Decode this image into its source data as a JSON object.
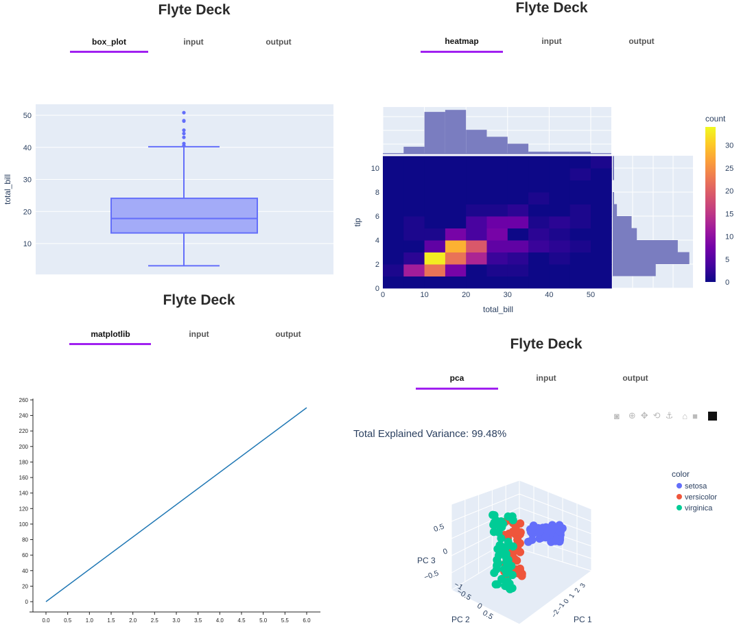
{
  "panels": [
    {
      "title": "Flyte Deck",
      "tabs": [
        "box_plot",
        "input",
        "output"
      ],
      "active": 0
    },
    {
      "title": "Flyte Deck",
      "tabs": [
        "heatmap",
        "input",
        "output"
      ],
      "active": 0
    },
    {
      "title": "Flyte Deck",
      "tabs": [
        "matplotlib",
        "input",
        "output"
      ],
      "active": 0
    },
    {
      "title": "Flyte Deck",
      "tabs": [
        "pca",
        "input",
        "output"
      ],
      "active": 0
    }
  ],
  "pca": {
    "variance_text": "Total Explained Variance: 99.48%",
    "modebar": [
      "camera-icon",
      "zoom-icon",
      "pan-icon",
      "orbit-icon",
      "turntable-icon",
      "home-icon",
      "reset-camera-icon",
      "plotly-logo-icon"
    ]
  },
  "chart_data": [
    {
      "type": "box",
      "ylabel": "total_bill",
      "yticks": [
        10,
        20,
        30,
        40,
        50
      ],
      "ylim": [
        0,
        53
      ],
      "q1": 13.3,
      "median": 17.8,
      "q3": 24.1,
      "lower_fence": 3.07,
      "upper_fence": 40.2,
      "outliers": [
        40.55,
        41.19,
        43.11,
        44.3,
        45.35,
        48.17,
        48.33,
        50.81
      ],
      "color": "#636efa"
    },
    {
      "type": "heatmap",
      "xlabel": "total_bill",
      "ylabel": "tip",
      "colorbar_title": "count",
      "xticks": [
        0,
        10,
        20,
        30,
        40,
        50
      ],
      "yticks": [
        0,
        2,
        4,
        6,
        8,
        10
      ],
      "colorbar_ticks": [
        0,
        5,
        10,
        15,
        20,
        25,
        30
      ],
      "xlim": [
        0,
        55
      ],
      "ylim": [
        0,
        11
      ],
      "x_bin_size": 5,
      "y_bin_size": 1,
      "zmax": 34,
      "z": [
        [
          0,
          0,
          0,
          0,
          0,
          0,
          0,
          0,
          0,
          0,
          0
        ],
        [
          1,
          12,
          22,
          8,
          0,
          1,
          1,
          0,
          0,
          0,
          0
        ],
        [
          0,
          2,
          33,
          22,
          13,
          3,
          2,
          0,
          1,
          0,
          0
        ],
        [
          0,
          0,
          6,
          28,
          19,
          6,
          6,
          3,
          2,
          1,
          0
        ],
        [
          0,
          1,
          1,
          8,
          4,
          8,
          0,
          2,
          1,
          0,
          0
        ],
        [
          0,
          1,
          0,
          0,
          4,
          7,
          7,
          1,
          2,
          1,
          0
        ],
        [
          0,
          0,
          0,
          0,
          1,
          1,
          2,
          0,
          0,
          1,
          0
        ],
        [
          0,
          0,
          0,
          0,
          0,
          0,
          0,
          1,
          0,
          0,
          0
        ],
        [
          0,
          0,
          0,
          0,
          0,
          0,
          0,
          0,
          0,
          0,
          0
        ],
        [
          0,
          0,
          0,
          0,
          0,
          0,
          0,
          0,
          0,
          1,
          0
        ],
        [
          0,
          0,
          0,
          0,
          0,
          0,
          0,
          0,
          0,
          0,
          1
        ]
      ],
      "x_marginal_counts": [
        0,
        7,
        42,
        44,
        24,
        17,
        10,
        2,
        2,
        2,
        0
      ],
      "y_marginal_counts": [
        0,
        41,
        73,
        62,
        23,
        18,
        4,
        1,
        0,
        1,
        1
      ],
      "marginal_color": "#7a7dc0"
    },
    {
      "type": "line",
      "x": [
        0,
        6
      ],
      "y": [
        0,
        250
      ],
      "xticks": [
        "0.0",
        "0.5",
        "1.0",
        "1.5",
        "2.0",
        "2.5",
        "3.0",
        "3.5",
        "4.0",
        "4.5",
        "5.0",
        "5.5",
        "6.0"
      ],
      "yticks": [
        0,
        20,
        40,
        60,
        80,
        100,
        120,
        140,
        160,
        180,
        200,
        220,
        240,
        260
      ],
      "color": "#1f77b4"
    },
    {
      "type": "scatter3d",
      "legend_title": "color",
      "series": [
        {
          "name": "setosa",
          "color": "#636efa"
        },
        {
          "name": "versicolor",
          "color": "#ef553b"
        },
        {
          "name": "virginica",
          "color": "#00cc96"
        }
      ],
      "axes": {
        "x": "PC 1",
        "y": "PC 2",
        "z": "PC 3"
      },
      "ticks": {
        "x": [
          "3",
          "2",
          "1",
          "0",
          "−1",
          "−2"
        ],
        "y": [
          "−1",
          "−0.5",
          "0",
          "0.5"
        ],
        "z": [
          "0.5",
          "0",
          "−0.5"
        ]
      }
    }
  ]
}
